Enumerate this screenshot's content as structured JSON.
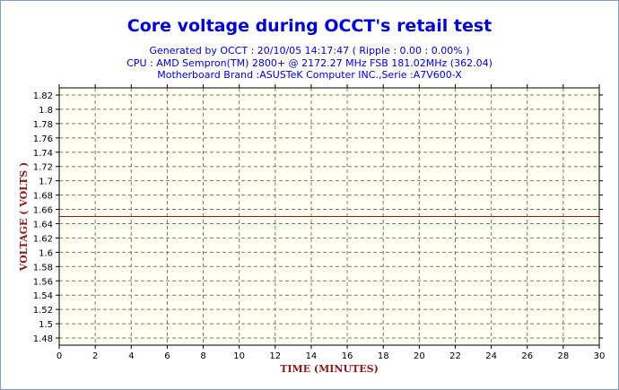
{
  "header": {
    "title": "Core voltage during OCCT's retail test",
    "line1": "Generated by OCCT : 20/10/05 14:17:47 ( Ripple : 0.00 : 0.00% )",
    "line2": "CPU : AMD Sempron(TM) 2800+ @ 2172.27 MHz FSB 181.02MHz (362.04)",
    "line3": "Motherboard Brand :ASUSTeK Computer INC.,Serie :A7V600-X"
  },
  "chart_data": {
    "type": "line",
    "title": "Core voltage during OCCT's retail test",
    "xlabel": "TIME (MINUTES)",
    "ylabel": "VOLTAGE ( VOLTS )",
    "xlim": [
      0,
      30
    ],
    "ylim": [
      1.47,
      1.83
    ],
    "x_ticks": [
      0,
      2,
      4,
      6,
      8,
      10,
      12,
      14,
      16,
      18,
      20,
      22,
      24,
      26,
      28,
      30
    ],
    "y_ticks": [
      1.48,
      1.5,
      1.52,
      1.54,
      1.56,
      1.58,
      1.6,
      1.62,
      1.64,
      1.66,
      1.68,
      1.7,
      1.72,
      1.74,
      1.76,
      1.78,
      1.8,
      1.82
    ],
    "grid": true,
    "series": [
      {
        "x": [
          0,
          30
        ],
        "values": [
          1.65,
          1.65
        ],
        "color": "#8b1a1a"
      }
    ],
    "plot_background": "#fffff0"
  }
}
